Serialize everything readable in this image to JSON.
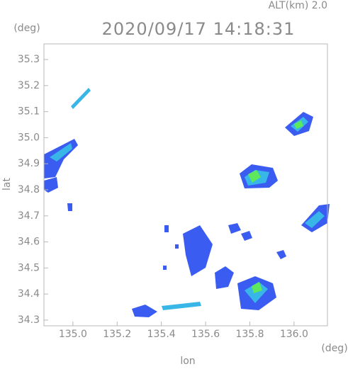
{
  "chart_data": {
    "type": "radar-map",
    "title": "2020/09/17 14:18:31",
    "altitude": "ALT(km)  2.0",
    "x_label": "lon",
    "y_label": "lat",
    "x_unit": "(deg)",
    "y_unit": "(deg)",
    "xlim": [
      134.869,
      136.151
    ],
    "ylim": [
      34.278,
      35.36
    ],
    "xticks": [
      {
        "value": 135.0,
        "label": "135.0"
      },
      135.2,
      135.4,
      135.6,
      135.8,
      {
        "value": 136.0,
        "label": "136.0"
      }
    ],
    "yticks": [
      34.3,
      34.4,
      34.5,
      34.6,
      34.7,
      34.8,
      34.9,
      {
        "value": 35.0,
        "label": "35.0"
      },
      35.1,
      35.2,
      35.3
    ]
  }
}
